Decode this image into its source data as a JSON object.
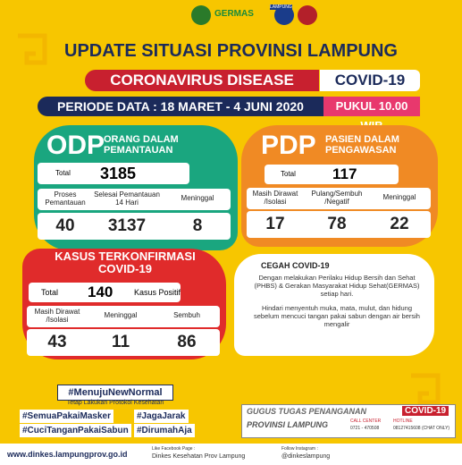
{
  "header": {
    "logo_germas": "GERMAS",
    "logo_lampung": "LAMPUNG",
    "title": "UPDATE SITUASI PROVINSI LAMPUNG",
    "banner": "CORONAVIRUS DISEASE",
    "banner_tag": "COVID-19",
    "period": "PERIODE DATA : 18 MARET - 4 JUNI 2020",
    "time": "PUKUL 10.00 WIB"
  },
  "odp": {
    "code": "ODP",
    "name": "ORANG DALAM PEMANTAUAN",
    "total_label": "Total",
    "total": 3185,
    "items": [
      {
        "label": "Proses Pemantauan",
        "value": 40
      },
      {
        "label": "Selesai Pemantauan 14 Hari",
        "value": 3137
      },
      {
        "label": "Meninggal",
        "value": 8
      }
    ]
  },
  "pdp": {
    "code": "PDP",
    "name": "PASIEN DALAM PENGAWASAN",
    "total_label": "Total",
    "total": 117,
    "items": [
      {
        "label": "Masih Dirawat /Isolasi",
        "value": 17
      },
      {
        "label": "Pulang/Sembuh /Negatif",
        "value": 78
      },
      {
        "label": "Meninggal",
        "value": 22
      }
    ]
  },
  "confirmed": {
    "name": "KASUS TERKONFIRMASI COVID-19",
    "total_label": "Total",
    "total": 140,
    "total_unit": "Kasus Positif",
    "items": [
      {
        "label": "Masih Dirawat /Isolasi",
        "value": 43
      },
      {
        "label": "Meninggal",
        "value": 11
      },
      {
        "label": "Sembuh",
        "value": 86
      }
    ]
  },
  "prevention": {
    "title": "CEGAH COVID-19",
    "paragraphs": [
      "Dengan melakukan Perilaku Hidup Bersih dan Sehat (PHBS) & Gerakan Masyarakat Hidup Sehat(GERMAS) setiap hari.",
      "Hindari menyentuh muka, mata, mulut, dan hidung sebelum mencuci tangan pakai sabun dengan air bersih mengalir"
    ]
  },
  "hashtags": {
    "main": "#MenujuNewNormal",
    "sub": "Tetap Lakukan Protokol Kesehatan",
    "tags": [
      "#SemuaPakaiMasker",
      "#JagaJarak",
      "#CuciTanganPakaiSabun",
      "#DirumahAja"
    ]
  },
  "task_force": {
    "title": "GUGUS TUGAS PENANGANAN",
    "tag": "COVID-19",
    "region": "PROVINSI LAMPUNG",
    "call_center_label": "CALL CENTER",
    "call_center": "0721 - 470508",
    "hotline_label": "HOTLINE",
    "hotline": "08127415608 (CHAT ONLY)"
  },
  "footer": {
    "website": "www.dinkes.lampungprov.go.id",
    "facebook_label": "Like Facebook Page :",
    "facebook": "Dinkes Kesehatan Prov Lampung",
    "instagram_label": "Follow Instagram :",
    "instagram": "@dinkeslampung"
  }
}
